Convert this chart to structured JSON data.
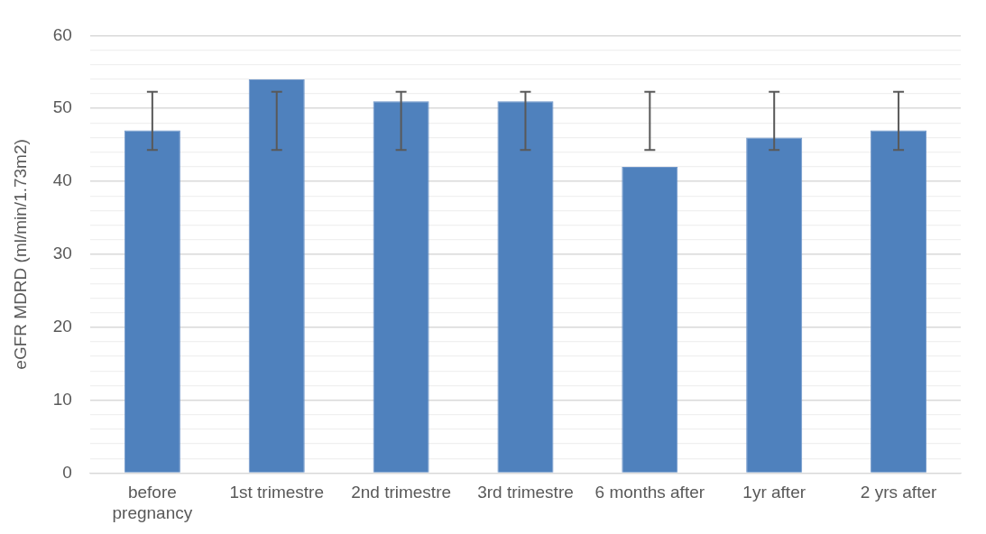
{
  "chart_data": {
    "type": "bar",
    "ylabel": "eGFR MDRD (ml/min/1.73m2)",
    "categories": [
      "before pregnancy",
      "1st trimestre",
      "2nd trimestre",
      "3rd trimestre",
      "6 months after",
      "1yr after",
      "2 yrs after"
    ],
    "values": [
      47,
      54,
      51,
      51,
      42,
      46,
      47
    ],
    "color": "#4f81bd",
    "errors": [
      [
        44.3,
        52.3
      ],
      [
        44.3,
        52.3
      ],
      [
        44.3,
        52.3
      ],
      [
        44.3,
        52.3
      ],
      [
        44.3,
        52.3
      ],
      [
        44.3,
        52.3
      ],
      [
        44.3,
        52.3
      ]
    ],
    "ylim": [
      0,
      60
    ],
    "yticks": [
      0,
      {
        "value": 2,
        "label": null
      },
      {
        "value": 4,
        "label": null
      },
      {
        "value": 6,
        "label": null
      },
      {
        "value": 8,
        "label": null
      },
      10,
      {
        "value": 12,
        "label": null
      },
      {
        "value": 14,
        "label": null
      },
      {
        "value": 16,
        "label": null
      },
      {
        "value": 18,
        "label": null
      },
      20,
      {
        "value": 22,
        "label": null
      },
      {
        "value": 24,
        "label": null
      },
      {
        "value": 26,
        "label": null
      },
      {
        "value": 28,
        "label": null
      },
      30,
      {
        "value": 32,
        "label": null
      },
      {
        "value": 34,
        "label": null
      },
      {
        "value": 36,
        "label": null
      },
      {
        "value": 38,
        "label": null
      },
      40,
      {
        "value": 42,
        "label": null
      },
      {
        "value": 44,
        "label": null
      },
      {
        "value": 46,
        "label": null
      },
      {
        "value": 48,
        "label": null
      },
      50,
      {
        "value": 52,
        "label": null
      },
      {
        "value": 54,
        "label": null
      },
      {
        "value": 56,
        "label": null
      },
      {
        "value": 58,
        "label": null
      },
      60
    ],
    "grid": true,
    "legend": false
  }
}
